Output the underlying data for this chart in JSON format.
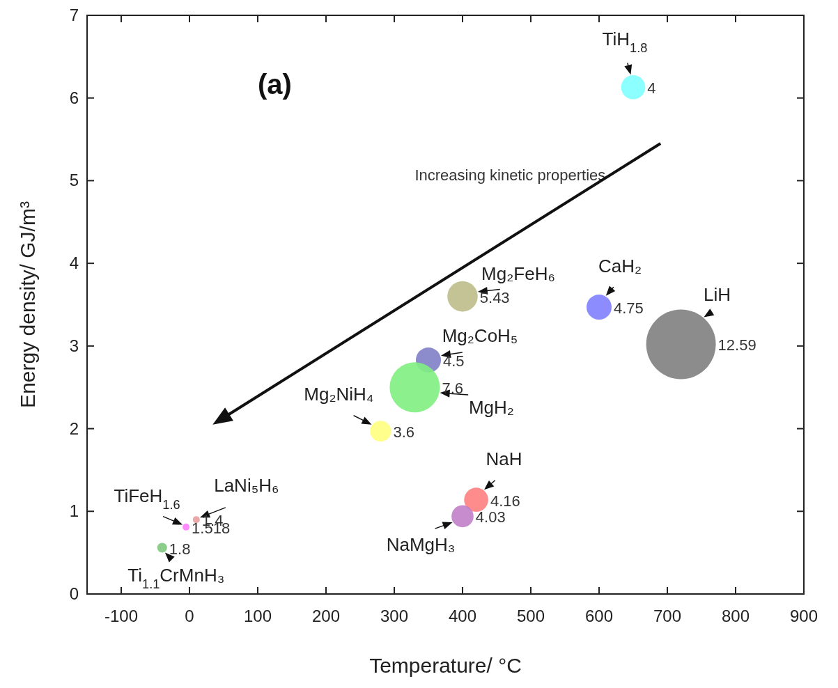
{
  "chart_data": {
    "type": "bubble",
    "xlabel": "Temperature/ °C",
    "ylabel": "Energy density/ GJ/m³",
    "xlim": [
      -150,
      900
    ],
    "xticks": [
      -100,
      0,
      100,
      200,
      300,
      400,
      500,
      600,
      700,
      800,
      900
    ],
    "ylim": [
      0,
      7
    ],
    "yticks": [
      0,
      1,
      2,
      3,
      4,
      5,
      6,
      7
    ],
    "grid": false,
    "marker": "circle",
    "series": [
      {
        "name": "TiH$_{1.8}$",
        "color": "#80ffff",
        "x": [
          650
        ],
        "values": [
          6.13
        ],
        "sizes": [
          0.12
        ]
      },
      {
        "name": "Mg₂FeH₆",
        "color": "#bcbc8a",
        "x": [
          400
        ],
        "values": [
          3.6
        ],
        "sizes": [
          0.19
        ]
      },
      {
        "name": "CaH₂",
        "color": "#8080ff",
        "x": [
          600
        ],
        "values": [
          3.47
        ],
        "sizes": [
          0.13
        ]
      },
      {
        "name": "LiH",
        "color": "#808080",
        "x": [
          720
        ],
        "values": [
          3.02
        ],
        "sizes": [
          1
        ]
      },
      {
        "name": "Mg₂CoH₅",
        "color": "#8080c8",
        "x": [
          350
        ],
        "values": [
          2.83
        ],
        "sizes": [
          0.13
        ]
      },
      {
        "name": "MgH₂",
        "color": "#80f080",
        "x": [
          330
        ],
        "values": [
          2.5
        ],
        "sizes": [
          0.52
        ]
      },
      {
        "name": "Mg₂NiH₄",
        "color": "#ffff80",
        "x": [
          280
        ],
        "values": [
          1.97
        ],
        "sizes": [
          0.09
        ]
      },
      {
        "name": "NaH",
        "color": "#ff8080",
        "x": [
          420
        ],
        "values": [
          1.14
        ],
        "sizes": [
          0.12
        ]
      },
      {
        "name": "NaMgH₃",
        "color": "#c080c8",
        "x": [
          400
        ],
        "values": [
          0.94
        ],
        "sizes": [
          0.1
        ]
      },
      {
        "name": "TiFeH$_{1.6}$",
        "color": "#ff80ff",
        "x": [
          -5
        ],
        "values": [
          0.81
        ],
        "sizes": [
          0.01
        ]
      },
      {
        "name": "LaNi₅H₆",
        "color": "#e8a0a0",
        "x": [
          10
        ],
        "values": [
          0.9
        ],
        "sizes": [
          0.01
        ]
      },
      {
        "name": "Ti$_{1.1}$CrMnH₃",
        "color": "#80c880",
        "x": [
          -40
        ],
        "values": [
          0.56
        ],
        "sizes": [
          0.02
        ]
      }
    ],
    "annotations": [
      "(a)",
      "Increasing kinetic properties",
      {
        "text": "4",
        "x": 650,
        "y": 6.13
      },
      {
        "text": "5.43",
        "x": 400,
        "y": 3.6
      },
      {
        "text": "4.75",
        "x": 600,
        "y": 3.47
      },
      {
        "text": "12.59",
        "x": 720,
        "y": 3.02
      },
      {
        "text": "4.5",
        "x": 350,
        "y": 2.83
      },
      {
        "text": "7.6",
        "x": 330,
        "y": 2.5
      },
      {
        "text": "3.6",
        "x": 280,
        "y": 1.97
      },
      {
        "text": "4.16",
        "x": 420,
        "y": 1.14
      },
      {
        "text": "4.03",
        "x": 400,
        "y": 0.94
      },
      {
        "text": "1.518",
        "x": -5,
        "y": 0.81
      },
      {
        "text": "1.4",
        "x": 10,
        "y": 0.9
      },
      {
        "text": "1.8",
        "x": -40,
        "y": 0.56
      }
    ]
  }
}
